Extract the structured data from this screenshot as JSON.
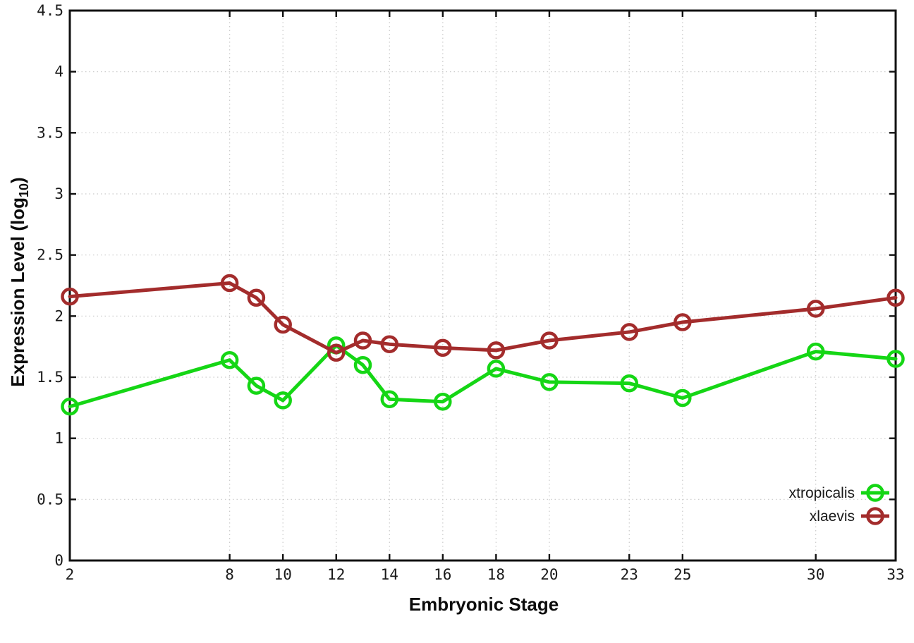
{
  "page": {
    "background": "#ffffff"
  },
  "chart_data": {
    "type": "line",
    "title": "",
    "xlabel": "Embryonic Stage",
    "ylabel": {
      "main": "Expression Level (log",
      "sub": "10",
      "end": ")"
    },
    "xlim": [
      2,
      33
    ],
    "ylim": [
      0,
      4.5
    ],
    "x_ticks": [
      2,
      8,
      10,
      12,
      14,
      16,
      18,
      20,
      23,
      25,
      30,
      33
    ],
    "x_tick_labels": [
      "2",
      "8",
      "10",
      "12",
      "14",
      "16",
      "18",
      "20",
      "23",
      "25",
      "30",
      "33"
    ],
    "y_ticks": [
      0,
      0.5,
      1,
      1.5,
      2,
      2.5,
      3,
      3.5,
      4,
      4.5
    ],
    "y_tick_labels": [
      "0",
      "0.5",
      "1",
      "1.5",
      "2",
      "2.5",
      "3",
      "3.5",
      "4",
      "4.5"
    ],
    "grid": true,
    "legend_position": "inside-bottom-right",
    "x": [
      2,
      8,
      9,
      10,
      12,
      13,
      14,
      16,
      18,
      20,
      23,
      25,
      30,
      33
    ],
    "series": [
      {
        "name": "xtropicalis",
        "color": "#15d615",
        "values": [
          1.26,
          1.64,
          1.43,
          1.31,
          1.76,
          1.6,
          1.32,
          1.3,
          1.57,
          1.46,
          1.45,
          1.33,
          1.71,
          1.65
        ]
      },
      {
        "name": "xlaevis",
        "color": "#a32c2c",
        "values": [
          2.16,
          2.27,
          2.15,
          1.93,
          1.7,
          1.8,
          1.77,
          1.74,
          1.72,
          1.8,
          1.87,
          1.95,
          2.06,
          2.15
        ]
      }
    ],
    "marker": {
      "shape": "open-circle",
      "radius": 10.5,
      "stroke_width": 4.5
    },
    "line_width": 5,
    "colors": {
      "grid": "#c9c9c9",
      "axis": "#111111",
      "text": "#1a1a1a"
    }
  }
}
